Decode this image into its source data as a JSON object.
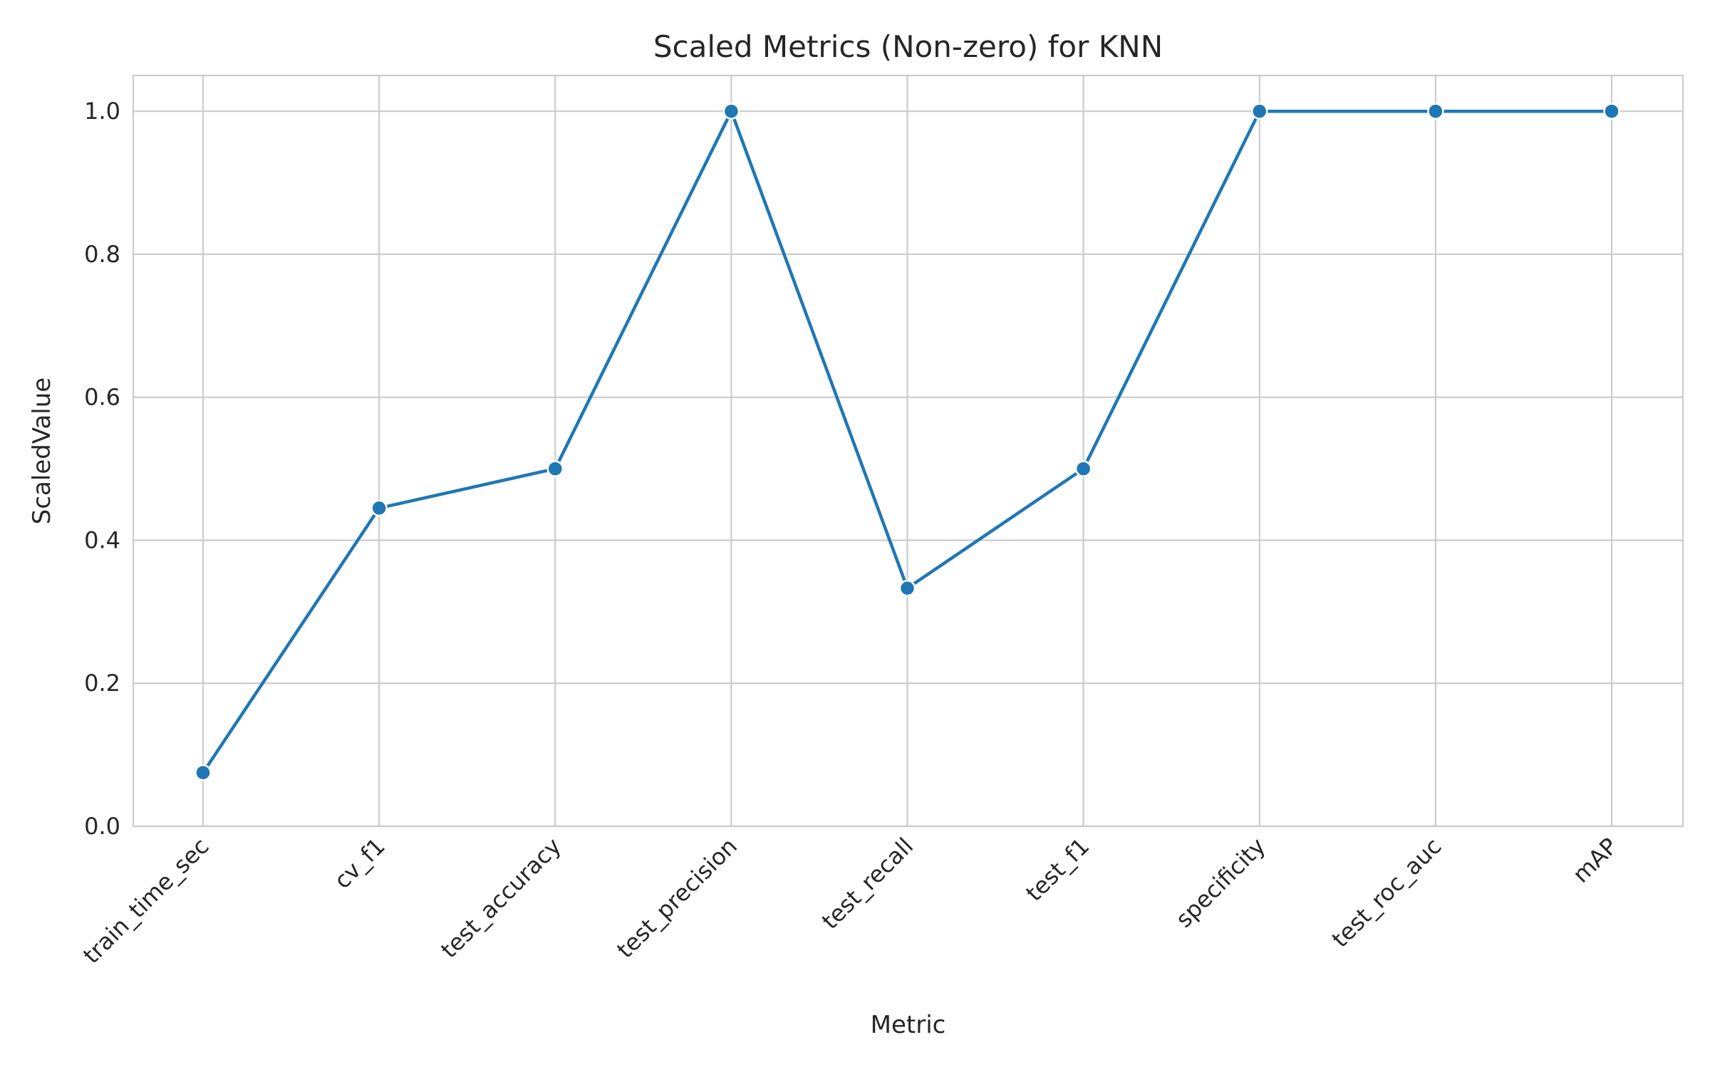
{
  "chart_data": {
    "type": "line",
    "title": "Scaled Metrics (Non-zero) for KNN",
    "xlabel": "Metric",
    "ylabel": "ScaledValue",
    "categories": [
      "train_time_sec",
      "cv_f1",
      "test_accuracy",
      "test_precision",
      "test_recall",
      "test_f1",
      "specificity",
      "test_roc_auc",
      "mAP"
    ],
    "series": [
      {
        "values": [
          0.075,
          0.445,
          0.5,
          1.0,
          0.333,
          0.5,
          1.0,
          1.0,
          1.0
        ]
      }
    ],
    "ylim": [
      0.0,
      1.05
    ],
    "yticks": [
      "0.0",
      "0.2",
      "0.4",
      "0.6",
      "0.8",
      "1.0"
    ],
    "grid": true,
    "legend": "none",
    "colors": {
      "line": "#1f77b4",
      "grid": "#cccccc",
      "text": "#262626",
      "background": "#ffffff"
    }
  }
}
